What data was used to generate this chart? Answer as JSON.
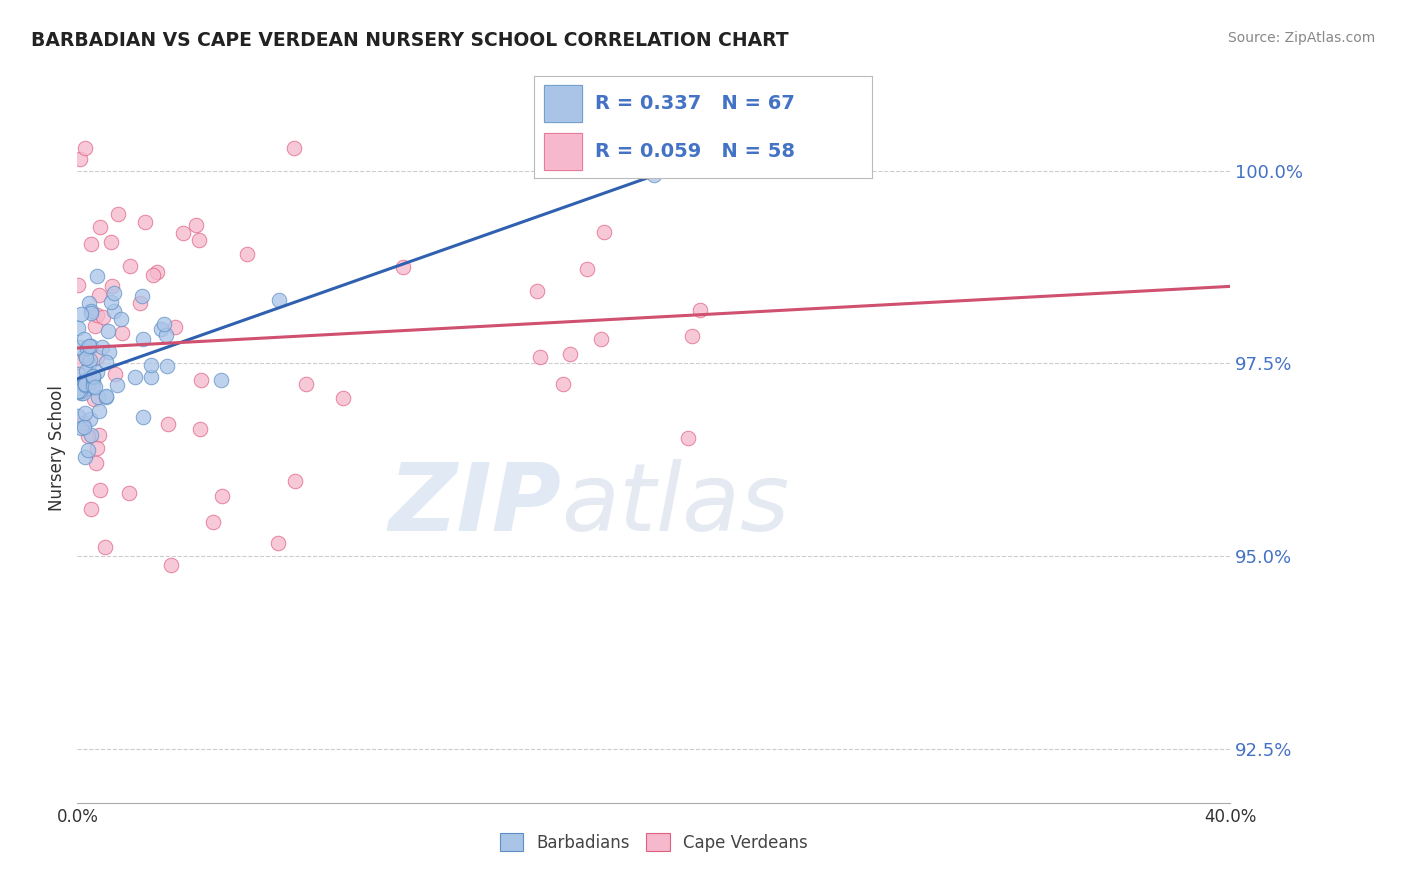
{
  "title": "BARBADIAN VS CAPE VERDEAN NURSERY SCHOOL CORRELATION CHART",
  "source": "Source: ZipAtlas.com",
  "ylabel": "Nursery School",
  "yticks": [
    92.5,
    95.0,
    97.5,
    100.0
  ],
  "ytick_labels": [
    "92.5%",
    "95.0%",
    "97.5%",
    "100.0%"
  ],
  "xmin": 0.0,
  "xmax": 40.0,
  "ymin": 91.8,
  "ymax": 101.0,
  "barbadian_color": "#aac4e8",
  "barbadian_edge": "#5b8ec4",
  "capeverdean_color": "#f5b8cc",
  "capeverdean_edge": "#e06080",
  "blue_line_color": "#3060b0",
  "pink_line_color": "#d05070",
  "legend_blue_label": "R = 0.337   N = 67",
  "legend_pink_label": "R = 0.059   N = 58",
  "watermark_zip": "ZIP",
  "watermark_atlas": "atlas",
  "legend_label_barbadians": "Barbadians",
  "legend_label_capeverdeans": "Cape Verdeans",
  "blue_line_x0": 0.0,
  "blue_line_y0": 97.3,
  "blue_line_x1": 22.0,
  "blue_line_y1": 100.2,
  "pink_line_x0": 0.0,
  "pink_line_y0": 97.7,
  "pink_line_x1": 40.0,
  "pink_line_y1": 98.5
}
